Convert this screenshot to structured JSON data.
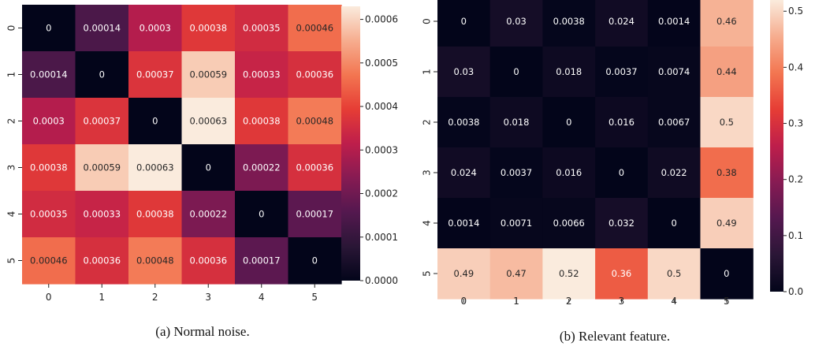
{
  "chart_data": [
    {
      "type": "heatmap",
      "caption": "(a) Normal noise.",
      "x_ticks": [
        "0",
        "1",
        "2",
        "3",
        "4",
        "5"
      ],
      "y_ticks": [
        "0",
        "1",
        "2",
        "3",
        "4",
        "5"
      ],
      "values": [
        [
          0,
          0.00014,
          0.0003,
          0.00038,
          0.00035,
          0.00046
        ],
        [
          0.00014,
          0,
          0.00037,
          0.00059,
          0.00033,
          0.00036
        ],
        [
          0.0003,
          0.00037,
          0,
          0.00063,
          0.00038,
          0.00048
        ],
        [
          0.00038,
          0.00059,
          0.00063,
          0,
          0.00022,
          0.00036
        ],
        [
          0.00035,
          0.00033,
          0.00038,
          0.00022,
          0,
          0.00017
        ],
        [
          0.00046,
          0.00036,
          0.00048,
          0.00036,
          0.00017,
          0
        ]
      ],
      "labels": [
        [
          "0",
          "0.00014",
          "0.0003",
          "0.00038",
          "0.00035",
          "0.00046"
        ],
        [
          "0.00014",
          "0",
          "0.00037",
          "0.00059",
          "0.00033",
          "0.00036"
        ],
        [
          "0.0003",
          "0.00037",
          "0",
          "0.00063",
          "0.00038",
          "0.00048"
        ],
        [
          "0.00038",
          "0.00059",
          "0.00063",
          "0",
          "0.00022",
          "0.00036"
        ],
        [
          "0.00035",
          "0.00033",
          "0.00038",
          "0.00022",
          "0",
          "0.00017"
        ],
        [
          "0.00046",
          "0.00036",
          "0.00048",
          "0.00036",
          "0.00017",
          "0"
        ]
      ],
      "vmin": 0,
      "vmax": 0.00063,
      "colorbar_ticks": [
        {
          "value": 0,
          "label": "0.0000"
        },
        {
          "value": 0.0001,
          "label": "0.0001"
        },
        {
          "value": 0.0002,
          "label": "0.0002"
        },
        {
          "value": 0.0003,
          "label": "0.0003"
        },
        {
          "value": 0.0004,
          "label": "0.0004"
        },
        {
          "value": 0.0005,
          "label": "0.0005"
        },
        {
          "value": 0.0006,
          "label": "0.0006"
        }
      ],
      "colormap": "rocket"
    },
    {
      "type": "heatmap",
      "caption": "(b) Relevant feature.",
      "x_ticks": [
        "0",
        "1",
        "2",
        "3",
        "4",
        "5"
      ],
      "y_ticks": [
        "0",
        "1",
        "2",
        "3",
        "4",
        "5"
      ],
      "values": [
        [
          0,
          0.03,
          0.0038,
          0.024,
          0.0014,
          0.46
        ],
        [
          0.03,
          0,
          0.018,
          0.0037,
          0.0074,
          0.44
        ],
        [
          0.0038,
          0.018,
          0,
          0.016,
          0.0067,
          0.5
        ],
        [
          0.024,
          0.0037,
          0.016,
          0,
          0.022,
          0.38
        ],
        [
          0.0014,
          0.0071,
          0.0066,
          0.032,
          0,
          0.49
        ],
        [
          0.49,
          0.47,
          0.52,
          0.36,
          0.5,
          0
        ]
      ],
      "labels": [
        [
          "0",
          "0.03",
          "0.0038",
          "0.024",
          "0.0014",
          "0.46"
        ],
        [
          "0.03",
          "0",
          "0.018",
          "0.0037",
          "0.0074",
          "0.44"
        ],
        [
          "0.0038",
          "0.018",
          "0",
          "0.016",
          "0.0067",
          "0.5"
        ],
        [
          "0.024",
          "0.0037",
          "0.016",
          "0",
          "0.022",
          "0.38"
        ],
        [
          "0.0014",
          "0.0071",
          "0.0066",
          "0.032",
          "0",
          "0.49"
        ],
        [
          "0.49",
          "0.47",
          "0.52",
          "0.36",
          "0.5",
          "0"
        ]
      ],
      "vmin": 0,
      "vmax": 0.52,
      "colorbar_ticks": [
        {
          "value": 0,
          "label": "0.0"
        },
        {
          "value": 0.1,
          "label": "0.1"
        },
        {
          "value": 0.2,
          "label": "0.2"
        },
        {
          "value": 0.3,
          "label": "0.3"
        },
        {
          "value": 0.4,
          "label": "0.4"
        },
        {
          "value": 0.5,
          "label": "0.5"
        }
      ],
      "colormap": "rocket"
    }
  ]
}
